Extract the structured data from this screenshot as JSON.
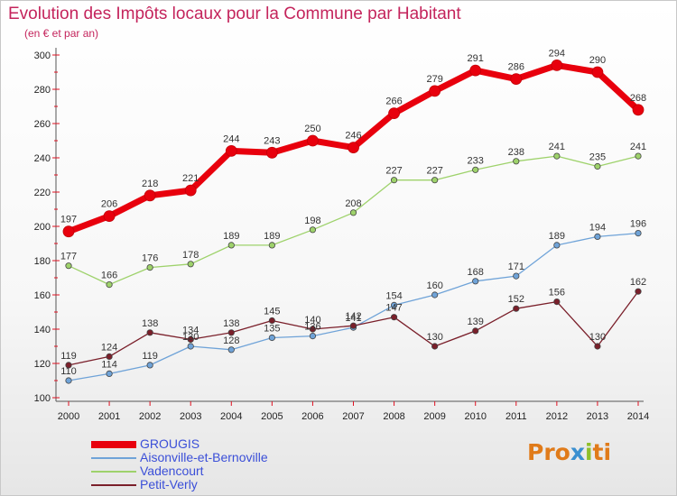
{
  "header": {
    "title": "Evolution des Impôts locaux pour la Commune par Habitant",
    "subtitle": "(en € et par an)"
  },
  "logo": {
    "parts": [
      "Pro",
      "x",
      "i",
      "ti"
    ],
    "colors": [
      "#e07b1a",
      "#3a8fd0",
      "#8fbf2a",
      "#e07b1a"
    ]
  },
  "chart_data": {
    "type": "line",
    "x": [
      2000,
      2001,
      2002,
      2003,
      2004,
      2005,
      2006,
      2007,
      2008,
      2009,
      2010,
      2011,
      2012,
      2013,
      2014
    ],
    "ylim": [
      100,
      300
    ],
    "yticks": [
      100,
      120,
      140,
      160,
      180,
      200,
      220,
      240,
      260,
      280,
      300
    ],
    "grid": false,
    "legend_position": "bottom-left",
    "series": [
      {
        "name": "GROUGIS",
        "color": "#e8000d",
        "width": 7,
        "marker": 6,
        "values": [
          197,
          206,
          218,
          221,
          244,
          243,
          250,
          246,
          266,
          279,
          291,
          286,
          294,
          290,
          268
        ]
      },
      {
        "name": "Aisonville-et-Bernoville",
        "color": "#6fa3d8",
        "width": 1.3,
        "marker": 3.2,
        "values": [
          110,
          114,
          119,
          130,
          128,
          135,
          136,
          141,
          154,
          160,
          168,
          171,
          189,
          194,
          196
        ]
      },
      {
        "name": "Vadencourt",
        "color": "#9ed26b",
        "width": 1.3,
        "marker": 3.2,
        "values": [
          177,
          166,
          176,
          178,
          189,
          189,
          198,
          208,
          227,
          227,
          233,
          238,
          241,
          235,
          241
        ]
      },
      {
        "name": "Petit-Verly",
        "color": "#7a1f2a",
        "width": 1.3,
        "marker": 3.2,
        "values": [
          119,
          124,
          138,
          134,
          138,
          145,
          140,
          142,
          147,
          130,
          139,
          152,
          156,
          130,
          162
        ]
      }
    ]
  }
}
